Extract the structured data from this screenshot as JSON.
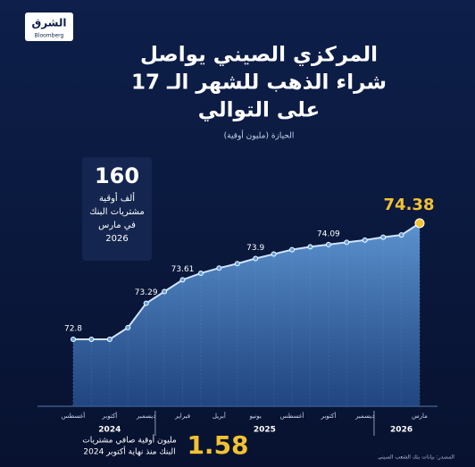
{
  "logo": {
    "name": "الشرق",
    "sub": "Bloomberg"
  },
  "chart_data": {
    "type": "area",
    "title": [
      "المركزي الصيني يواصل",
      "شراء الذهب للشهر الـ 17",
      "على التوالي"
    ],
    "subtitle": "الحيازة (مليون أوقية)",
    "categories": [
      "أغسطس",
      null,
      "أكتوبر",
      null,
      "ديسمبر",
      null,
      "فبراير",
      null,
      "أبريل",
      null,
      "يونيو",
      null,
      "أغسطس",
      null,
      "أكتوبر",
      null,
      "ديسمبر",
      null,
      null,
      "مارس"
    ],
    "year_labels": [
      "2024",
      "2025",
      "2026"
    ],
    "values": [
      72.8,
      72.8,
      72.8,
      72.96,
      73.29,
      73.45,
      73.61,
      73.7,
      73.77,
      73.83,
      73.9,
      73.96,
      74.02,
      74.06,
      74.09,
      74.12,
      74.15,
      74.19,
      74.22,
      74.38
    ],
    "value_labels": [
      "72.8",
      null,
      null,
      null,
      "73.29",
      null,
      "73.61",
      null,
      null,
      null,
      "73.9",
      null,
      null,
      null,
      "74.09",
      null,
      null,
      null,
      null,
      "74.38"
    ],
    "color": "#5a9fe0",
    "highlight_color": "#f2c230",
    "callout": {
      "value": "160",
      "lines": [
        "ألف أوقية",
        "مشتريات البنك",
        "في مارس",
        "2026"
      ]
    },
    "summary": {
      "value": "1.58",
      "lines": [
        "مليون أوقية صافي مشتريات",
        "البنك منذ نهاية أكتوبر 2024"
      ]
    },
    "source": "المصدر: بيانات بنك الشعب الصيني"
  }
}
